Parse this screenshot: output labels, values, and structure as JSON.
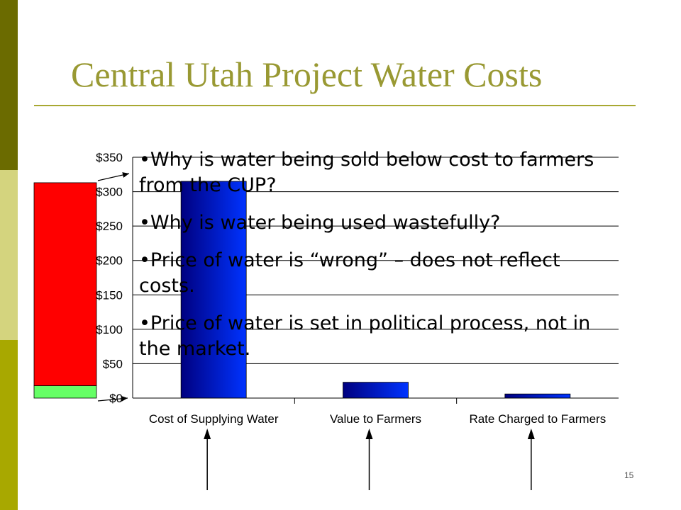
{
  "slide": {
    "title": "Central Utah Project Water Costs",
    "page_number": "15",
    "bullets": [
      "•Why is water being sold below cost to farmers from the CUP?",
      "•Why is water being used wastefully?",
      "•Price of water is “wrong” – does not reflect costs.",
      "•Price of water is set in political process, not in the market."
    ]
  },
  "colors": {
    "accent": "#999933",
    "bar_dark": "#000080",
    "bar_light": "#0033ff",
    "stack_red": "#ff0000",
    "stack_green": "#66ff66"
  },
  "chart_data": {
    "type": "bar",
    "categories": [
      "Cost of Supplying Water",
      "Value to Farmers",
      "Rate Charged to Farmers"
    ],
    "values": [
      315,
      23,
      6
    ],
    "ylim": [
      0,
      350
    ],
    "yticks": [
      0,
      50,
      100,
      150,
      200,
      250,
      300,
      350
    ],
    "ytick_labels": [
      "$0",
      "$50",
      "$100",
      "$150",
      "$200",
      "$250",
      "$300",
      "$350"
    ],
    "grid": true,
    "stacked_bar": {
      "red_value": 295,
      "green_value": 18
    }
  }
}
